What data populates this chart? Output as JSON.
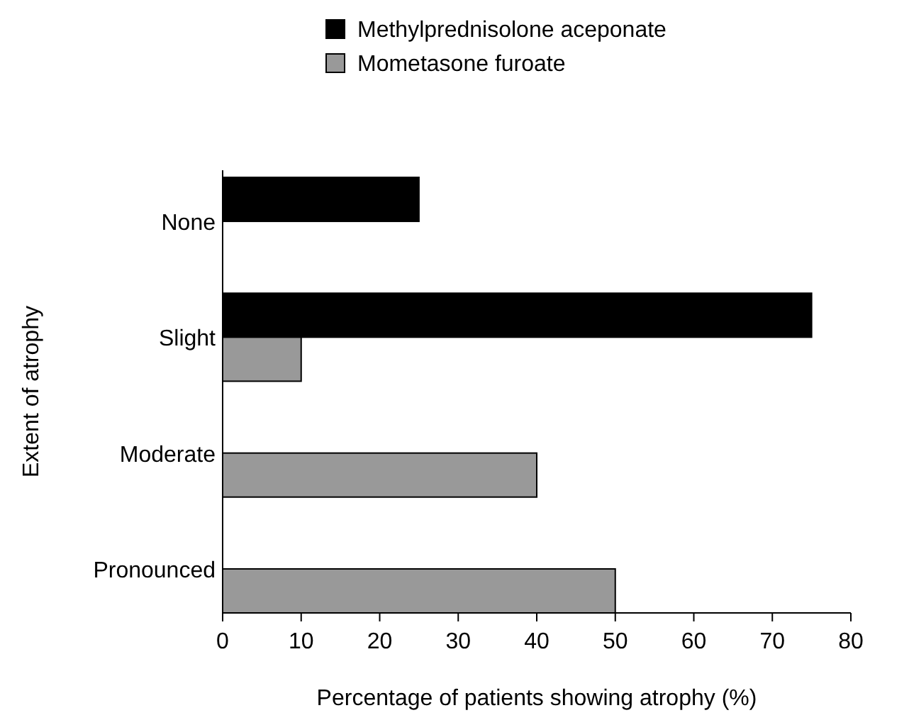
{
  "chart_data": {
    "type": "bar",
    "orientation": "horizontal",
    "xlabel": "Percentage of patients showing atrophy (%)",
    "ylabel": "Extent of atrophy",
    "categories": [
      "None",
      "Slight",
      "Moderate",
      "Pronounced"
    ],
    "series": [
      {
        "name": "Methylprednisolone aceponate",
        "color": "#000000",
        "values": [
          25,
          75,
          0,
          0
        ]
      },
      {
        "name": "Mometasone furoate",
        "color": "#999999",
        "values": [
          0,
          10,
          40,
          50
        ]
      }
    ],
    "xlim": [
      0,
      80
    ],
    "xticks": [
      0,
      10,
      20,
      30,
      40,
      50,
      60,
      70,
      80
    ],
    "grid": false,
    "legend": "top"
  }
}
